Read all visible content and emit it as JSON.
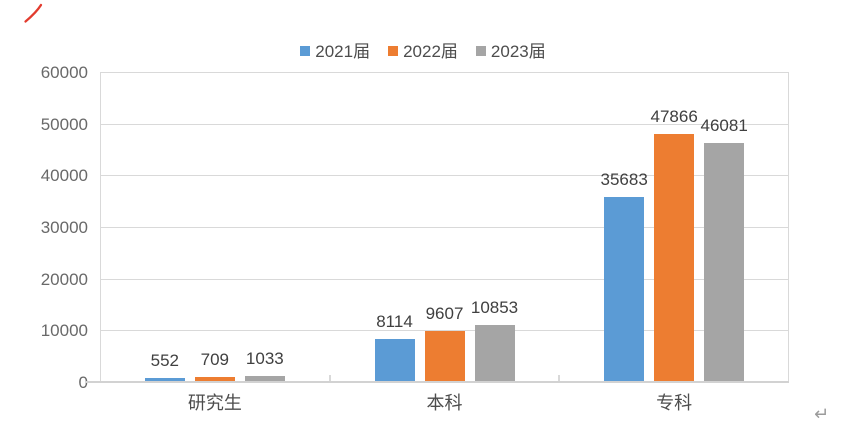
{
  "chart_data": {
    "type": "bar",
    "title": "",
    "categories": [
      "研究生",
      "本科",
      "专科"
    ],
    "series": [
      {
        "name": "2021届",
        "color": "#5b9bd5",
        "values": [
          552,
          8114,
          35683
        ]
      },
      {
        "name": "2022届",
        "color": "#ed7d31",
        "values": [
          709,
          9607,
          47866
        ]
      },
      {
        "name": "2023届",
        "color": "#a5a5a5",
        "values": [
          1033,
          10853,
          46081
        ]
      }
    ],
    "xlabel": "",
    "ylabel": "",
    "ylim": [
      0,
      60000
    ],
    "y_ticks": [
      0,
      10000,
      20000,
      30000,
      40000,
      50000,
      60000
    ],
    "grid": "horizontal",
    "legend_position": "top-center",
    "data_labels": "above-bars"
  },
  "style": {
    "background": "#ffffff",
    "gridline_color": "#d9d9d9",
    "axis_line_color": "#d2d2d2",
    "y_label_color": "#696969",
    "data_label_color": "#404040",
    "category_label_color": "#4d4d4d",
    "legend_text_color": "#4d4d4d",
    "red_mark_color": "#e23b2e",
    "enter_mark_color": "#9b9b9b"
  },
  "marks": {
    "enter_symbol": "↵"
  }
}
